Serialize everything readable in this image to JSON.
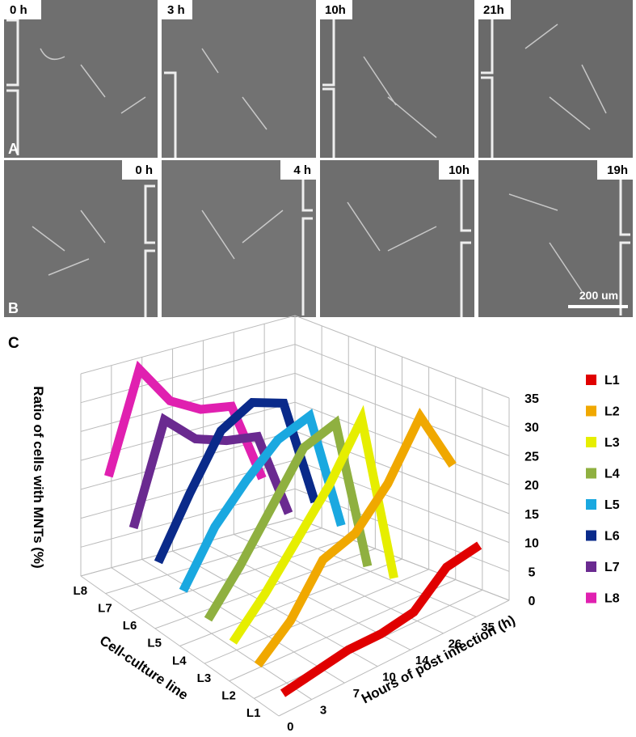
{
  "panels": {
    "row_a": {
      "label": "A",
      "times": [
        "0 h",
        "3 h",
        "10h",
        "21h"
      ]
    },
    "row_b": {
      "label": "B",
      "times": [
        "0 h",
        "4 h",
        "10h",
        "19h"
      ],
      "scale_bar": "200 um"
    }
  },
  "figure_label": "C",
  "chart_data": {
    "type": "line",
    "y_label": "Ratio of cells with MNTs (%)",
    "x_label": "Hours of post infection (h)",
    "z_label": "Cell-culture line",
    "categories": [
      "0",
      "3",
      "7",
      "10",
      "14",
      "26",
      "35"
    ],
    "series": [
      {
        "name": "L1",
        "color": "#e00000",
        "values": [
          1,
          2,
          3,
          3,
          4,
          9,
          10
        ]
      },
      {
        "name": "L2",
        "color": "#f0a800",
        "values": [
          3,
          8,
          16,
          18,
          24,
          33,
          22
        ]
      },
      {
        "name": "L3",
        "color": "#e6ee00",
        "values": [
          4,
          10,
          17,
          24,
          33,
          3,
          null
        ]
      },
      {
        "name": "L4",
        "color": "#8fb040",
        "values": [
          5,
          12,
          20,
          28,
          30,
          3,
          null
        ]
      },
      {
        "name": "L5",
        "color": "#1aa8e0",
        "values": [
          7,
          16,
          22,
          27,
          29,
          8,
          null
        ]
      },
      {
        "name": "L6",
        "color": "#0a2a8a",
        "values": [
          9,
          19,
          28,
          31,
          29,
          10,
          null
        ]
      },
      {
        "name": "L7",
        "color": "#6a2a90",
        "values": [
          12,
          29,
          24,
          22,
          21,
          6,
          null
        ]
      },
      {
        "name": "L8",
        "color": "#e020b0",
        "values": [
          18,
          35,
          28,
          25,
          24,
          10,
          null
        ]
      }
    ],
    "ylim": [
      0,
      35
    ],
    "yticks": [
      0,
      5,
      10,
      15,
      20,
      25,
      30,
      35
    ],
    "grid": true,
    "legend": "right"
  }
}
